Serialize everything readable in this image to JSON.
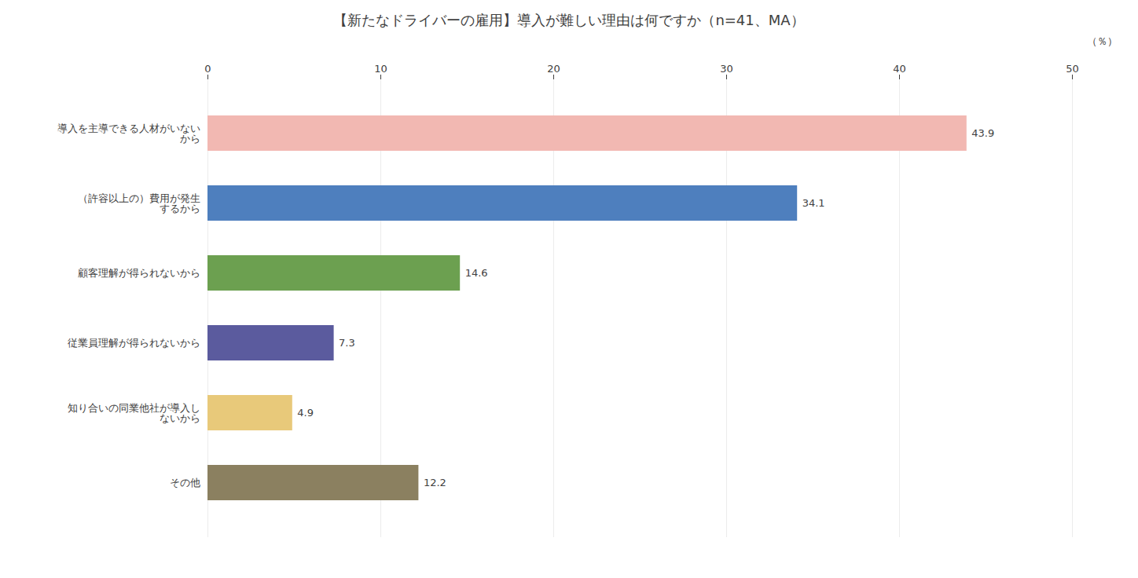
{
  "chart_data": {
    "type": "bar",
    "orientation": "horizontal",
    "title": "【新たなドライバーの雇用】導入が難しい理由は何ですか（n=41、MA）",
    "xlabel": "（％）",
    "categories": [
      "導入を主導できる人材がいない\nから",
      "（許容以上の）費用が発生\nするから",
      "顧客理解が得られないから",
      "従業員理解が得られないから",
      "知り合いの同業他社が導入し\nないから",
      "その他"
    ],
    "values": [
      43.9,
      34.1,
      14.6,
      7.3,
      4.9,
      12.2
    ],
    "colors": [
      "#f2b8b2",
      "#4e7fbe",
      "#6ca050",
      "#5b5b9e",
      "#e8c97a",
      "#8b8060"
    ],
    "xlim": [
      0,
      50
    ],
    "xticks": [
      0,
      10,
      20,
      30,
      40,
      50
    ],
    "grid": true,
    "data_labels": true
  }
}
